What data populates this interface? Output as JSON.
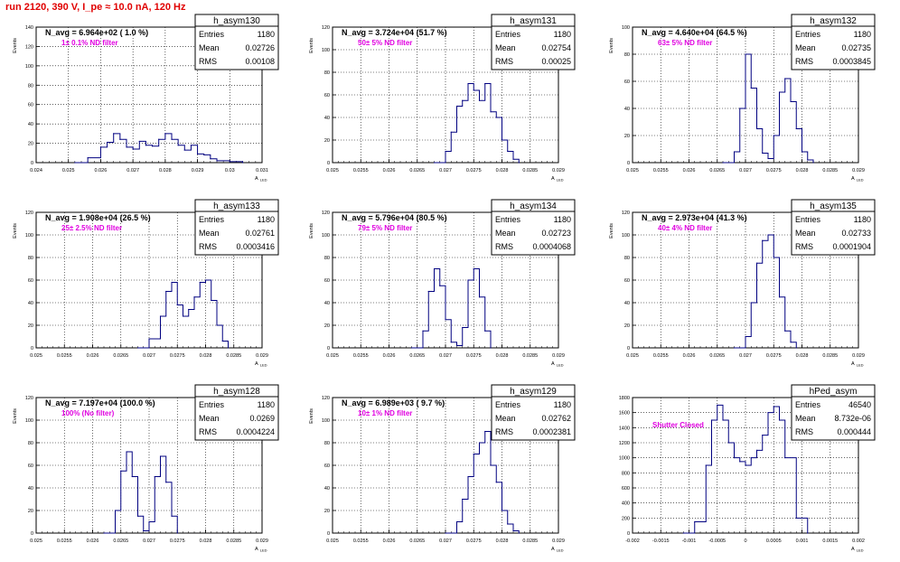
{
  "run_title": "run 2120,   390 V, I_pe ≈ 10.0 nA, 120 Hz",
  "colors": {
    "curve": "#000080",
    "title": "#e00000",
    "annotation": "#e000e0",
    "grid": "#000000"
  },
  "chart_data": [
    {
      "type": "line",
      "title": "h_asym130",
      "header": "N_avg = 6.964e+02 ( 1.0 %)",
      "annotation": "1± 0.1% ND filter",
      "stats": [
        [
          "Entries",
          "1180"
        ],
        [
          "Mean",
          "0.02726"
        ],
        [
          "RMS",
          "0.00108"
        ]
      ],
      "xlabel": "A_LED",
      "ylabel": "Events",
      "xlim": [
        0.024,
        0.031
      ],
      "ylim": [
        0,
        140
      ],
      "xticks": [
        "0.024",
        "0.025",
        "0.026",
        "0.027",
        "0.028",
        "0.029",
        "0.03",
        "0.031"
      ],
      "yticks": [
        "0",
        "20",
        "40",
        "60",
        "80",
        "100",
        "120",
        "140"
      ],
      "grid": true,
      "x": [
        0.0252,
        0.0256,
        0.026,
        0.0262,
        0.0264,
        0.0266,
        0.0268,
        0.027,
        0.0272,
        0.0274,
        0.0276,
        0.0278,
        0.028,
        0.0282,
        0.0284,
        0.0286,
        0.0288,
        0.029,
        0.0292,
        0.0294,
        0.0296,
        0.03,
        0.0304
      ],
      "y": [
        0,
        5,
        16,
        21,
        30,
        24,
        16,
        14,
        22,
        18,
        17,
        24,
        30,
        24,
        18,
        13,
        18,
        9,
        8,
        4,
        2,
        1,
        0
      ]
    },
    {
      "type": "line",
      "title": "h_asym131",
      "header": "N_avg = 3.724e+04 (51.7 %)",
      "annotation": "50± 5% ND filter",
      "stats": [
        [
          "Entries",
          "1180"
        ],
        [
          "Mean",
          "0.02754"
        ],
        [
          "RMS",
          "0.00025"
        ]
      ],
      "xlabel": "A_LED",
      "ylabel": "Events",
      "xlim": [
        0.025,
        0.029
      ],
      "ylim": [
        0,
        120
      ],
      "xticks": [
        "0.025",
        "0.0255",
        "0.026",
        "0.0265",
        "0.027",
        "0.0275",
        "0.028",
        "0.0285",
        "0.029"
      ],
      "yticks": [
        "0",
        "20",
        "40",
        "60",
        "80",
        "100",
        "120"
      ],
      "grid": true,
      "x": [
        0.0268,
        0.027,
        0.0271,
        0.0272,
        0.0273,
        0.0274,
        0.0275,
        0.0276,
        0.0277,
        0.0278,
        0.0279,
        0.028,
        0.0281,
        0.0282,
        0.0283
      ],
      "y": [
        0,
        10,
        27,
        50,
        55,
        70,
        64,
        55,
        70,
        45,
        40,
        20,
        10,
        3,
        0
      ]
    },
    {
      "type": "line",
      "title": "h_asym132",
      "header": "N_avg = 4.640e+04 (64.5 %)",
      "annotation": "63± 5% ND filter",
      "stats": [
        [
          "Entries",
          "1180"
        ],
        [
          "Mean",
          "0.02735"
        ],
        [
          "RMS",
          "0.0003845"
        ]
      ],
      "xlabel": "A_LED",
      "ylabel": "Events",
      "xlim": [
        0.025,
        0.029
      ],
      "ylim": [
        0,
        100
      ],
      "xticks": [
        "0.025",
        "0.0255",
        "0.026",
        "0.0265",
        "0.027",
        "0.0275",
        "0.028",
        "0.0285",
        "0.029"
      ],
      "yticks": [
        "0",
        "20",
        "40",
        "60",
        "80",
        "100"
      ],
      "grid": true,
      "x": [
        0.0266,
        0.0268,
        0.0269,
        0.027,
        0.0271,
        0.0272,
        0.0273,
        0.0274,
        0.0275,
        0.0276,
        0.0277,
        0.0278,
        0.0279,
        0.028,
        0.0281,
        0.0282
      ],
      "y": [
        0,
        8,
        40,
        80,
        55,
        25,
        7,
        3,
        20,
        52,
        62,
        45,
        25,
        8,
        2,
        0
      ]
    },
    {
      "type": "line",
      "title": "h_asym133",
      "header": "N_avg = 1.908e+04 (26.5 %)",
      "annotation": "25± 2.5% ND filter",
      "stats": [
        [
          "Entries",
          "1180"
        ],
        [
          "Mean",
          "0.02761"
        ],
        [
          "RMS",
          "0.0003416"
        ]
      ],
      "xlabel": "A_LED",
      "ylabel": "Events",
      "xlim": [
        0.025,
        0.029
      ],
      "ylim": [
        0,
        120
      ],
      "xticks": [
        "0.025",
        "0.0255",
        "0.026",
        "0.0265",
        "0.027",
        "0.0275",
        "0.028",
        "0.0285",
        "0.029"
      ],
      "yticks": [
        "0",
        "20",
        "40",
        "60",
        "80",
        "100",
        "120"
      ],
      "grid": true,
      "x": [
        0.0268,
        0.027,
        0.0272,
        0.0273,
        0.0274,
        0.0275,
        0.0276,
        0.0277,
        0.0278,
        0.0279,
        0.028,
        0.0281,
        0.0282,
        0.0283,
        0.0284
      ],
      "y": [
        0,
        8,
        28,
        50,
        58,
        38,
        28,
        34,
        45,
        58,
        60,
        42,
        20,
        6,
        0
      ]
    },
    {
      "type": "line",
      "title": "h_asym134",
      "header": "N_avg = 5.796e+04 (80.5 %)",
      "annotation": "79± 5% ND filter",
      "stats": [
        [
          "Entries",
          "1180"
        ],
        [
          "Mean",
          "0.02723"
        ],
        [
          "RMS",
          "0.0004068"
        ]
      ],
      "xlabel": "A_LED",
      "ylabel": "Events",
      "xlim": [
        0.025,
        0.029
      ],
      "ylim": [
        0,
        120
      ],
      "xticks": [
        "0.025",
        "0.0255",
        "0.026",
        "0.0265",
        "0.027",
        "0.0275",
        "0.028",
        "0.0285",
        "0.029"
      ],
      "yticks": [
        "0",
        "20",
        "40",
        "60",
        "80",
        "100",
        "120"
      ],
      "grid": true,
      "x": [
        0.0264,
        0.0266,
        0.0267,
        0.0268,
        0.0269,
        0.027,
        0.0271,
        0.0272,
        0.0273,
        0.0274,
        0.0275,
        0.0276,
        0.0277,
        0.0278
      ],
      "y": [
        0,
        15,
        50,
        70,
        55,
        25,
        5,
        2,
        18,
        60,
        70,
        45,
        15,
        0
      ]
    },
    {
      "type": "line",
      "title": "h_asym135",
      "header": "N_avg = 2.973e+04 (41.3 %)",
      "annotation": "40± 4% ND filter",
      "stats": [
        [
          "Entries",
          "1180"
        ],
        [
          "Mean",
          "0.02733"
        ],
        [
          "RMS",
          "0.0001904"
        ]
      ],
      "xlabel": "A_LED",
      "ylabel": "Events",
      "xlim": [
        0.025,
        0.029
      ],
      "ylim": [
        0,
        120
      ],
      "xticks": [
        "0.025",
        "0.0255",
        "0.026",
        "0.0265",
        "0.027",
        "0.0275",
        "0.028",
        "0.0285",
        "0.029"
      ],
      "yticks": [
        "0",
        "20",
        "40",
        "60",
        "80",
        "100",
        "120"
      ],
      "grid": true,
      "x": [
        0.0268,
        0.027,
        0.0271,
        0.0272,
        0.0273,
        0.0274,
        0.0275,
        0.0276,
        0.0277,
        0.0278,
        0.0279
      ],
      "y": [
        0,
        10,
        40,
        75,
        95,
        100,
        80,
        45,
        15,
        5,
        0
      ]
    },
    {
      "type": "line",
      "title": "h_asym128",
      "header": "N_avg = 7.197e+04 (100.0 %)",
      "annotation": "100% (No filter)",
      "stats": [
        [
          "Entries",
          "1180"
        ],
        [
          "Mean",
          "0.0269"
        ],
        [
          "RMS",
          "0.0004224"
        ]
      ],
      "xlabel": "A_LED",
      "ylabel": "Events",
      "xlim": [
        0.025,
        0.029
      ],
      "ylim": [
        0,
        120
      ],
      "xticks": [
        "0.025",
        "0.0255",
        "0.026",
        "0.0265",
        "0.027",
        "0.0275",
        "0.028",
        "0.0285",
        "0.029"
      ],
      "yticks": [
        "0",
        "20",
        "40",
        "60",
        "80",
        "100",
        "120"
      ],
      "grid": true,
      "x": [
        0.0262,
        0.0264,
        0.0265,
        0.0266,
        0.0267,
        0.0268,
        0.0269,
        0.027,
        0.0271,
        0.0272,
        0.0273,
        0.0274,
        0.0275
      ],
      "y": [
        0,
        20,
        55,
        72,
        50,
        15,
        2,
        10,
        50,
        68,
        45,
        15,
        0
      ]
    },
    {
      "type": "line",
      "title": "h_asym129",
      "header": "N_avg = 6.989e+03 ( 9.7 %)",
      "annotation": "10± 1% ND filter",
      "stats": [
        [
          "Entries",
          "1180"
        ],
        [
          "Mean",
          "0.02762"
        ],
        [
          "RMS",
          "0.0002381"
        ]
      ],
      "xlabel": "A_LED",
      "ylabel": "Events",
      "xlim": [
        0.025,
        0.029
      ],
      "ylim": [
        0,
        120
      ],
      "xticks": [
        "0.025",
        "0.0255",
        "0.026",
        "0.0265",
        "0.027",
        "0.0275",
        "0.028",
        "0.0285",
        "0.029"
      ],
      "yticks": [
        "0",
        "20",
        "40",
        "60",
        "80",
        "100",
        "120"
      ],
      "grid": true,
      "x": [
        0.027,
        0.0272,
        0.0273,
        0.0274,
        0.0275,
        0.0276,
        0.0277,
        0.0278,
        0.0279,
        0.028,
        0.0281,
        0.0282,
        0.0283
      ],
      "y": [
        0,
        10,
        30,
        50,
        70,
        80,
        90,
        60,
        45,
        20,
        8,
        2,
        0
      ]
    },
    {
      "type": "line",
      "title": "hPed_asym",
      "header": "",
      "annotation": "Shutter Closed",
      "stats": [
        [
          "Entries",
          "46540"
        ],
        [
          "Mean",
          "8.732e-06"
        ],
        [
          "RMS",
          "0.000444"
        ]
      ],
      "xlabel": "A_LED",
      "ylabel": "",
      "xlim": [
        -0.002,
        0.002
      ],
      "ylim": [
        0,
        1800
      ],
      "xticks": [
        "-0.002",
        "-0.0015",
        "-0.001",
        "-0.0005",
        "0",
        "0.0005",
        "0.001",
        "0.0015",
        "0.002"
      ],
      "yticks": [
        "0",
        "200",
        "400",
        "600",
        "800",
        "1000",
        "1200",
        "1400",
        "1600",
        "1800"
      ],
      "grid": true,
      "x": [
        -0.0011,
        -0.0009,
        -0.0007,
        -0.0006,
        -0.0005,
        -0.0004,
        -0.0003,
        -0.0002,
        -0.0001,
        0,
        0.0001,
        0.0002,
        0.0003,
        0.0004,
        0.0005,
        0.0006,
        0.0007,
        0.0009,
        0.0011
      ],
      "y": [
        0,
        150,
        900,
        1500,
        1700,
        1500,
        1200,
        1000,
        950,
        900,
        1000,
        1100,
        1300,
        1600,
        1680,
        1500,
        1000,
        200,
        0
      ]
    }
  ]
}
